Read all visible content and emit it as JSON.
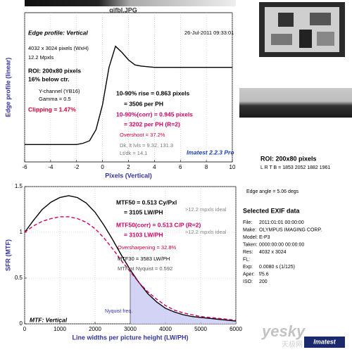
{
  "header": {
    "title": "gjfbl.JPG"
  },
  "chart_data": [
    {
      "type": "line",
      "x_label": "Pixels (Vertical)",
      "y_label": "Edge profile (linear)",
      "xlim": [
        -6,
        10
      ],
      "xticks": [
        -6,
        -4,
        -2,
        0,
        2,
        4,
        6,
        8,
        10
      ],
      "ylim": [
        0,
        1.2
      ],
      "grid": true,
      "x": [
        -6,
        -5,
        -4,
        -3,
        -2,
        -1.5,
        -1,
        -0.5,
        0,
        0.5,
        1,
        1.5,
        2,
        2.5,
        3,
        4,
        5,
        6,
        7,
        8,
        9,
        10
      ],
      "series": [
        {
          "name": "Edge profile",
          "color": "#000000",
          "values": [
            0.14,
            0.14,
            0.14,
            0.14,
            0.14,
            0.15,
            0.17,
            0.26,
            0.46,
            0.76,
            0.93,
            0.88,
            0.82,
            0.78,
            0.77,
            0.76,
            0.76,
            0.76,
            0.76,
            0.76,
            0.76,
            0.76
          ]
        }
      ],
      "annotations": [
        {
          "text": "Edge profile: Vertical",
          "color": "#000000"
        },
        {
          "text": "26-Jul-2011 09:33:01",
          "color": "#000000"
        },
        {
          "text": "4032 x 3024 pixels (WxH)",
          "color": "#000000"
        },
        {
          "text": "12.2 Mpxls",
          "color": "#000000"
        },
        {
          "text": "ROI: 200x80 pixels",
          "color": "#000000"
        },
        {
          "text": "16% below ctr.",
          "color": "#000000"
        },
        {
          "text": "Y-channel (YB16)",
          "color": "#000000"
        },
        {
          "text": "Gamma = 0.5",
          "color": "#000000"
        },
        {
          "text": "Clipping = 1.47%",
          "color": "#cc0033"
        },
        {
          "text": "10-90% rise = 0.863 pixels",
          "color": "#000000"
        },
        {
          "text": "= 3506 per PH",
          "color": "#000000"
        },
        {
          "text": "10-90%(corr) = 0.945 pixels",
          "color": "#cc0066"
        },
        {
          "text": "= 3202 per PH  (R=2)",
          "color": "#cc0066"
        },
        {
          "text": "Overshoot = 37.2%",
          "color": "#cc0033"
        },
        {
          "text": "Dk, lt lvls = 9.32, 131.3",
          "color": "#777777"
        },
        {
          "text": "Lt/dk = 14.1",
          "color": "#777777"
        },
        {
          "text": "Imatest 2.2.3 Pro",
          "color": "#1a3fb0"
        }
      ]
    },
    {
      "type": "line",
      "x_label": "Line widths per picture height (LW/PH)",
      "y_label": "SFR (MTF)",
      "xlim": [
        0,
        6000
      ],
      "xticks": [
        0,
        1000,
        2000,
        3000,
        4000,
        5000,
        6000
      ],
      "ylim": [
        0,
        1.5
      ],
      "yticks": [
        0,
        0.5,
        1,
        1.5
      ],
      "grid": true,
      "x": [
        0,
        250,
        500,
        750,
        1000,
        1250,
        1500,
        1750,
        2000,
        2250,
        2500,
        2750,
        3000,
        3250,
        3500,
        3750,
        4000,
        4250,
        4500,
        4750,
        5000,
        5250,
        5500,
        5750,
        6000
      ],
      "series": [
        {
          "name": "MTF",
          "color": "#000000",
          "dash": false,
          "values": [
            1.0,
            1.13,
            1.25,
            1.33,
            1.38,
            1.4,
            1.38,
            1.32,
            1.22,
            1.08,
            0.92,
            0.75,
            0.59,
            0.45,
            0.33,
            0.24,
            0.17,
            0.13,
            0.1,
            0.08,
            0.07,
            0.06,
            0.05,
            0.04,
            0.03
          ]
        },
        {
          "name": "MTF(corr)",
          "color": "#cc0066",
          "dash": true,
          "values": [
            1.0,
            1.07,
            1.12,
            1.15,
            1.17,
            1.17,
            1.15,
            1.11,
            1.04,
            0.94,
            0.82,
            0.69,
            0.57,
            0.45,
            0.35,
            0.27,
            0.2,
            0.15,
            0.12,
            0.1,
            0.08,
            0.07,
            0.06,
            0.05,
            0.04
          ]
        }
      ],
      "marker": {
        "label": "Nyquist freq.",
        "x": 3000
      },
      "annotations": [
        {
          "text": "MTF50 = 0.513 Cy/Pxl",
          "color": "#000000"
        },
        {
          "text": "= 3105 LW/PH",
          "color": "#000000"
        },
        {
          "text": ">12.2 mpxls ideal",
          "color": "#888888"
        },
        {
          "text": "MTF50(corr) = 0.513 C/P  (R=2)",
          "color": "#cc0066"
        },
        {
          "text": "= 3103 LW/PH",
          "color": "#cc0066"
        },
        {
          "text": ">12.2 mpxls ideal",
          "color": "#888888"
        },
        {
          "text": "Oversharpening = 32.8%",
          "color": "#cc0033"
        },
        {
          "text": "MTF30 = 3583 LW/PH",
          "color": "#000000"
        },
        {
          "text": "MTF at Nyquist = 0.592",
          "color": "#555555"
        },
        {
          "text": "MTF: Vertical",
          "color": "#000000"
        }
      ]
    }
  ],
  "side_panel": {
    "roi": "ROI: 200x80 pixels",
    "lrtb": "L R T B = 1853 2052  1882 1961",
    "edge_angle": "Edge angle = 5.06 degs",
    "exif_title": "Selected EXIF data",
    "exif": [
      [
        "File:",
        "2011:01:01 00:00:00"
      ],
      [
        "Make:",
        "OLYMPUS IMAGING CORP."
      ],
      [
        "Model:",
        "E-P3"
      ],
      [
        "Taken:",
        "0000:00:00 00:00:00"
      ],
      [
        "Res:",
        "4032 x 3024"
      ],
      [
        "FL:",
        ""
      ],
      [
        "Exp:",
        "0.0080 s  (1/125)"
      ],
      [
        "Aper:",
        "f/5.6"
      ],
      [
        "ISO:",
        "200"
      ]
    ]
  },
  "watermark": {
    "brand": "yesky",
    "sub": "天极网",
    "logo": "Imatest"
  }
}
